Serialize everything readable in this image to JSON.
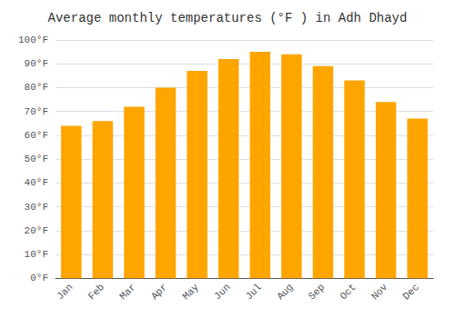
{
  "chart_data": {
    "type": "bar",
    "title": "Average monthly temperatures (°F ) in Adh Dhayd",
    "categories": [
      "Jan",
      "Feb",
      "Mar",
      "Apr",
      "May",
      "Jun",
      "Jul",
      "Aug",
      "Sep",
      "Oct",
      "Nov",
      "Dec"
    ],
    "values": [
      64,
      66,
      72,
      80,
      87,
      92,
      95,
      94,
      89,
      83,
      74,
      67
    ],
    "color": "#FFA500",
    "ylim": [
      0,
      100
    ],
    "yticks": [
      {
        "value": 0,
        "label": "0°F"
      },
      {
        "value": 10,
        "label": "10°F"
      },
      {
        "value": 20,
        "label": "20°F"
      },
      {
        "value": 30,
        "label": "30°F"
      },
      {
        "value": 40,
        "label": "40°F"
      },
      {
        "value": 50,
        "label": "50°F"
      },
      {
        "value": 60,
        "label": "60°F"
      },
      {
        "value": 70,
        "label": "70°F"
      },
      {
        "value": 80,
        "label": "80°F"
      },
      {
        "value": 90,
        "label": "90°F"
      },
      {
        "value": 100,
        "label": "100°F"
      }
    ],
    "grid": true
  }
}
